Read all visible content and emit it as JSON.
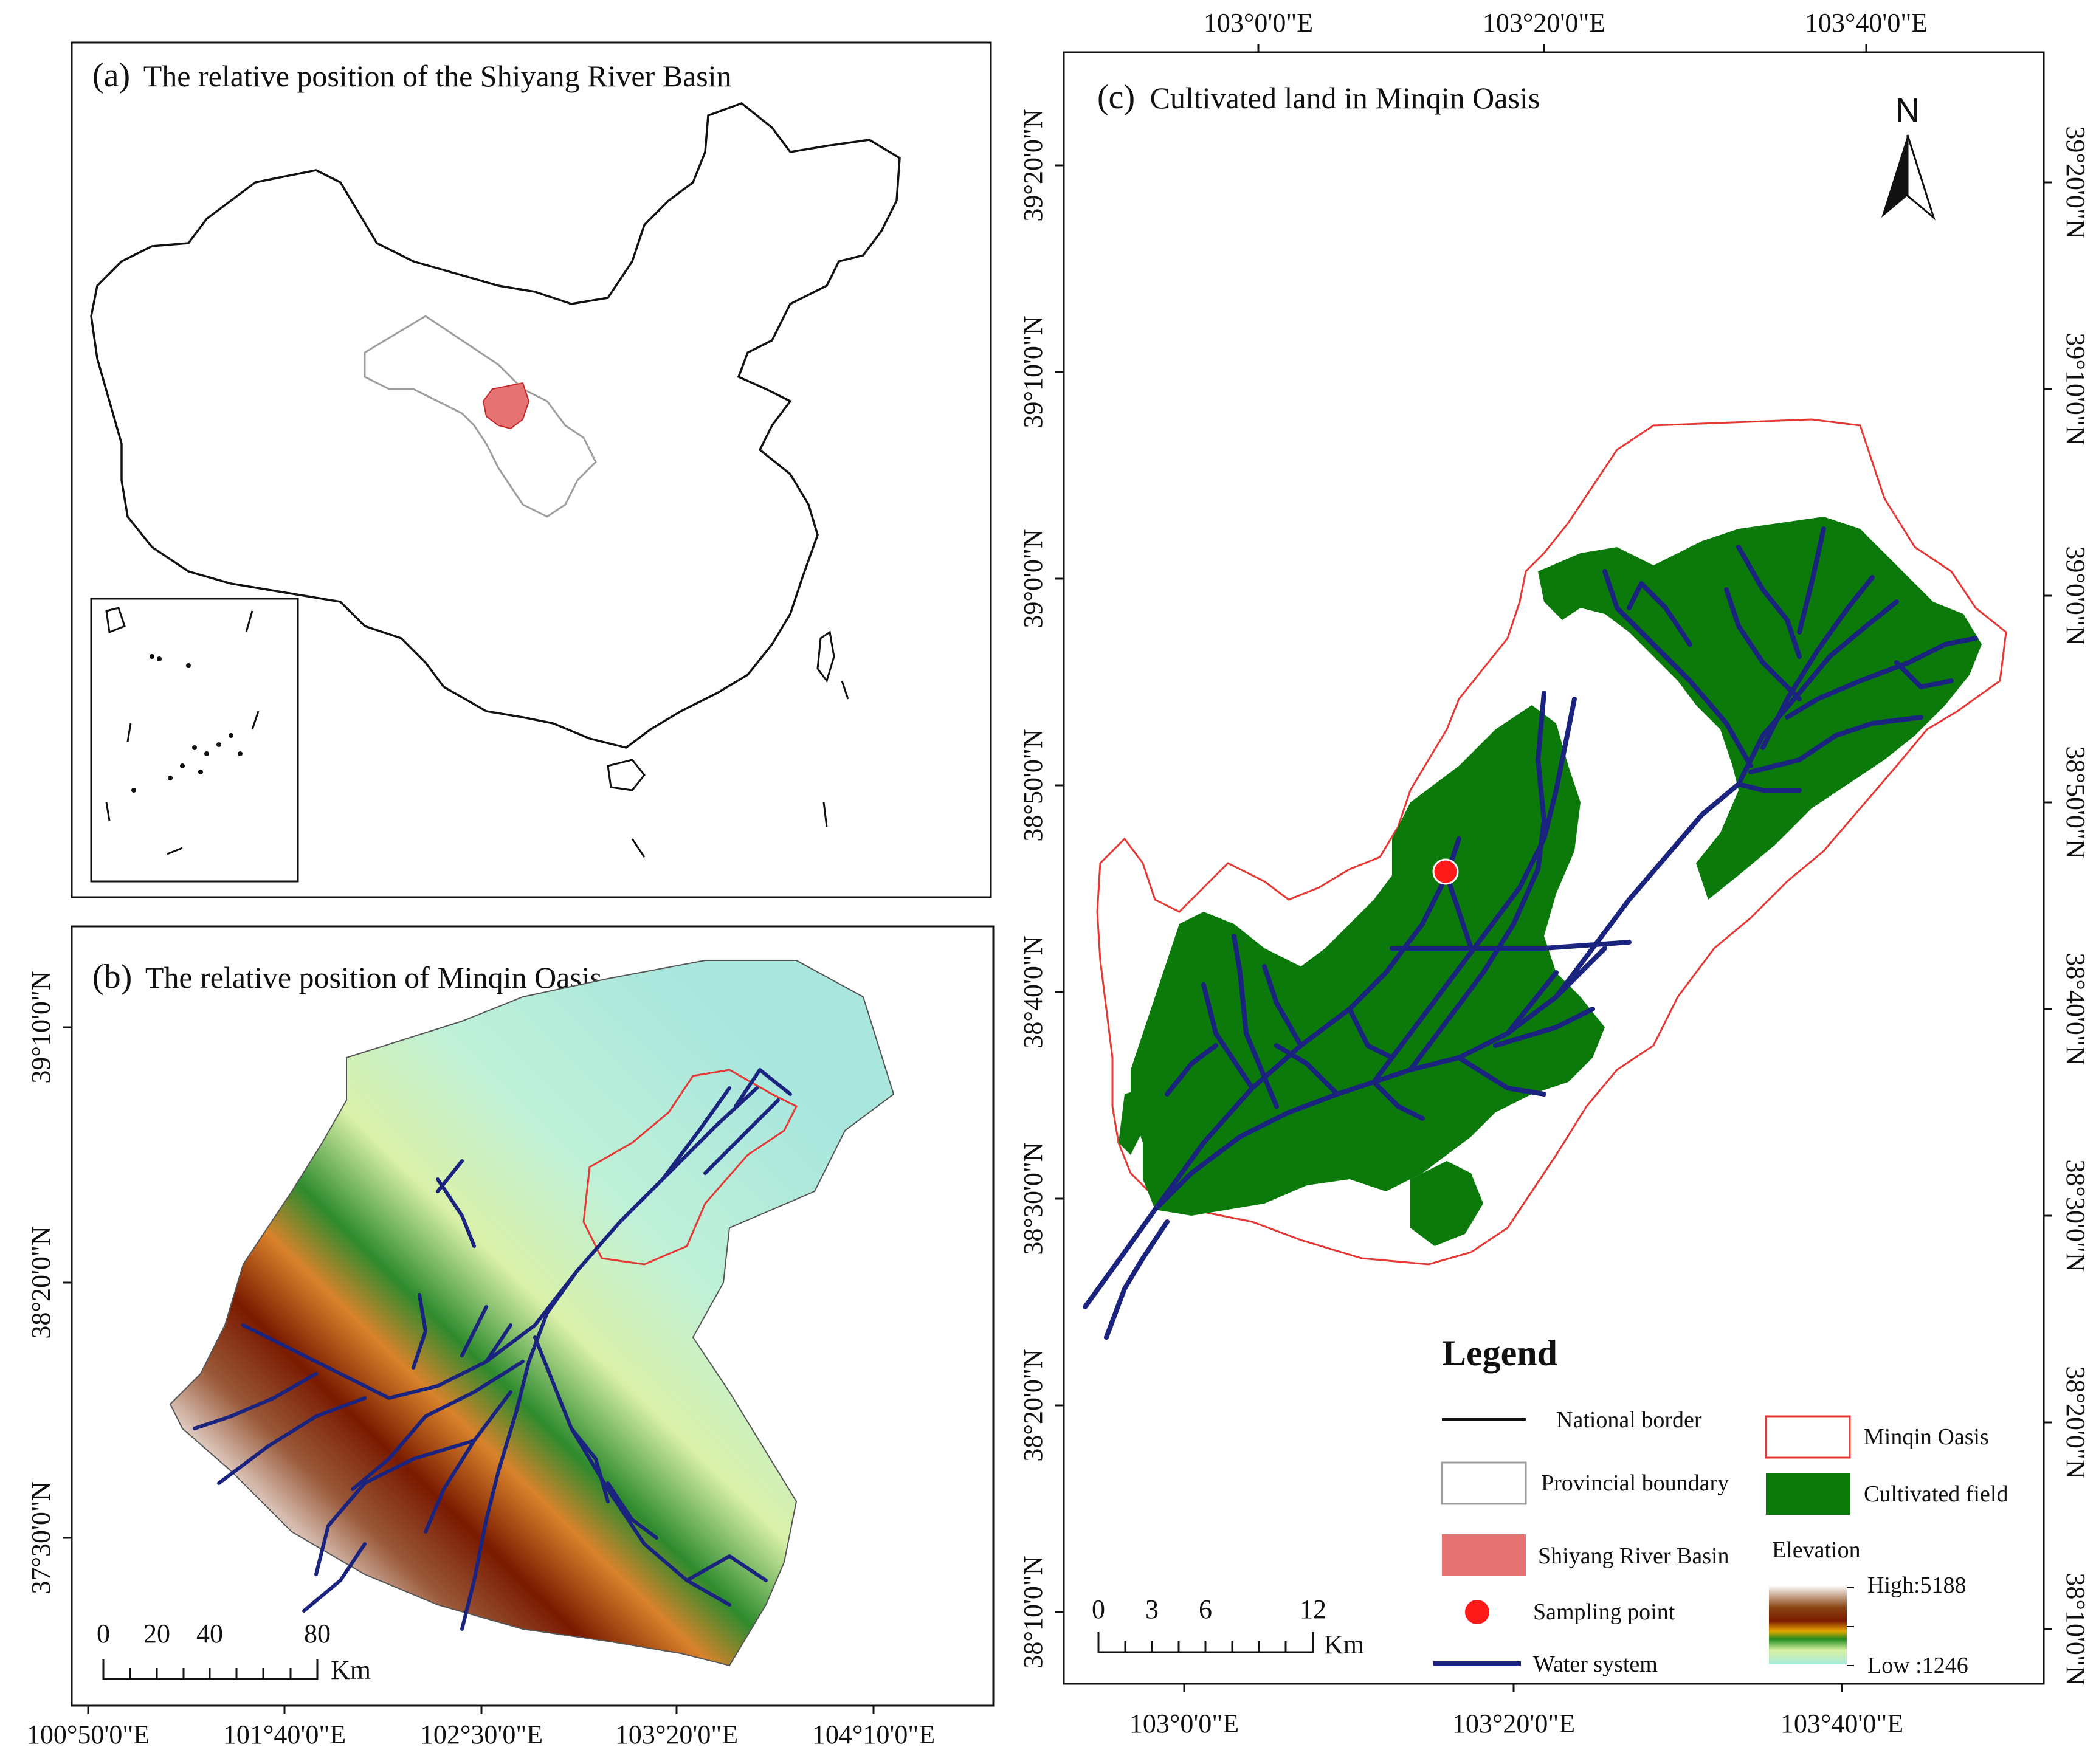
{
  "panel_a": {
    "label": "(a)",
    "title": "The relative position of the Shiyang River Basin"
  },
  "panel_b": {
    "label": "(b)",
    "title": "The relative position of Minqin Oasis",
    "x_ticks": [
      "100°50'0\"E",
      "101°40'0\"E",
      "102°30'0\"E",
      "103°20'0\"E",
      "104°10'0\"E"
    ],
    "y_ticks": [
      "39°10'0\"N",
      "38°20'0\"N",
      "37°30'0\"N"
    ],
    "scale_bar": {
      "labels": [
        "0",
        "20",
        "40",
        "80"
      ],
      "unit": "Km"
    }
  },
  "panel_c": {
    "label": "(c)",
    "title": "Cultivated land in Minqin Oasis",
    "top_ticks": [
      "103°0'0\"E",
      "103°20'0\"E",
      "103°40'0\"E"
    ],
    "bottom_ticks": [
      "103°0'0\"E",
      "103°20'0\"E",
      "103°40'0\"E"
    ],
    "lat_ticks": [
      "39°20'0\"N",
      "39°10'0\"N",
      "39°0'0\"N",
      "38°50'0\"N",
      "38°40'0\"N",
      "38°30'0\"N",
      "38°20'0\"N",
      "38°10'0\"N"
    ],
    "north_label": "N",
    "scale_bar": {
      "labels": [
        "0",
        "3",
        "6",
        "12"
      ],
      "unit": "Km"
    },
    "sampling_point": {
      "lon": "103°15'E",
      "lat": "38°46'N"
    }
  },
  "legend": {
    "title": "Legend",
    "items": [
      {
        "label": "National border",
        "symbol": "line",
        "color": "#111111"
      },
      {
        "label": "Provincial boundary",
        "symbol": "box",
        "color": "#9e9e9e"
      },
      {
        "label": "Shiyang River Basin",
        "symbol": "fill",
        "color": "#e57373"
      },
      {
        "label": "Sampling point",
        "symbol": "dot",
        "color": "#ff1a1a"
      },
      {
        "label": "Water system",
        "symbol": "line",
        "color": "#1a237e"
      },
      {
        "label": "Minqin Oasis",
        "symbol": "box",
        "color": "#e53935"
      },
      {
        "label": "Cultivated field",
        "symbol": "fill",
        "color": "#0b7a0b"
      }
    ],
    "elevation": {
      "title": "Elevation",
      "high": "High:5188",
      "low": "Low :1246"
    }
  },
  "colors": {
    "river": "#1a237e",
    "cultivated": "#0b7a0b",
    "oasis_border": "#e53935",
    "basin": "#e57373",
    "lowland": "#bdeee0",
    "highland": "#8b2500"
  }
}
